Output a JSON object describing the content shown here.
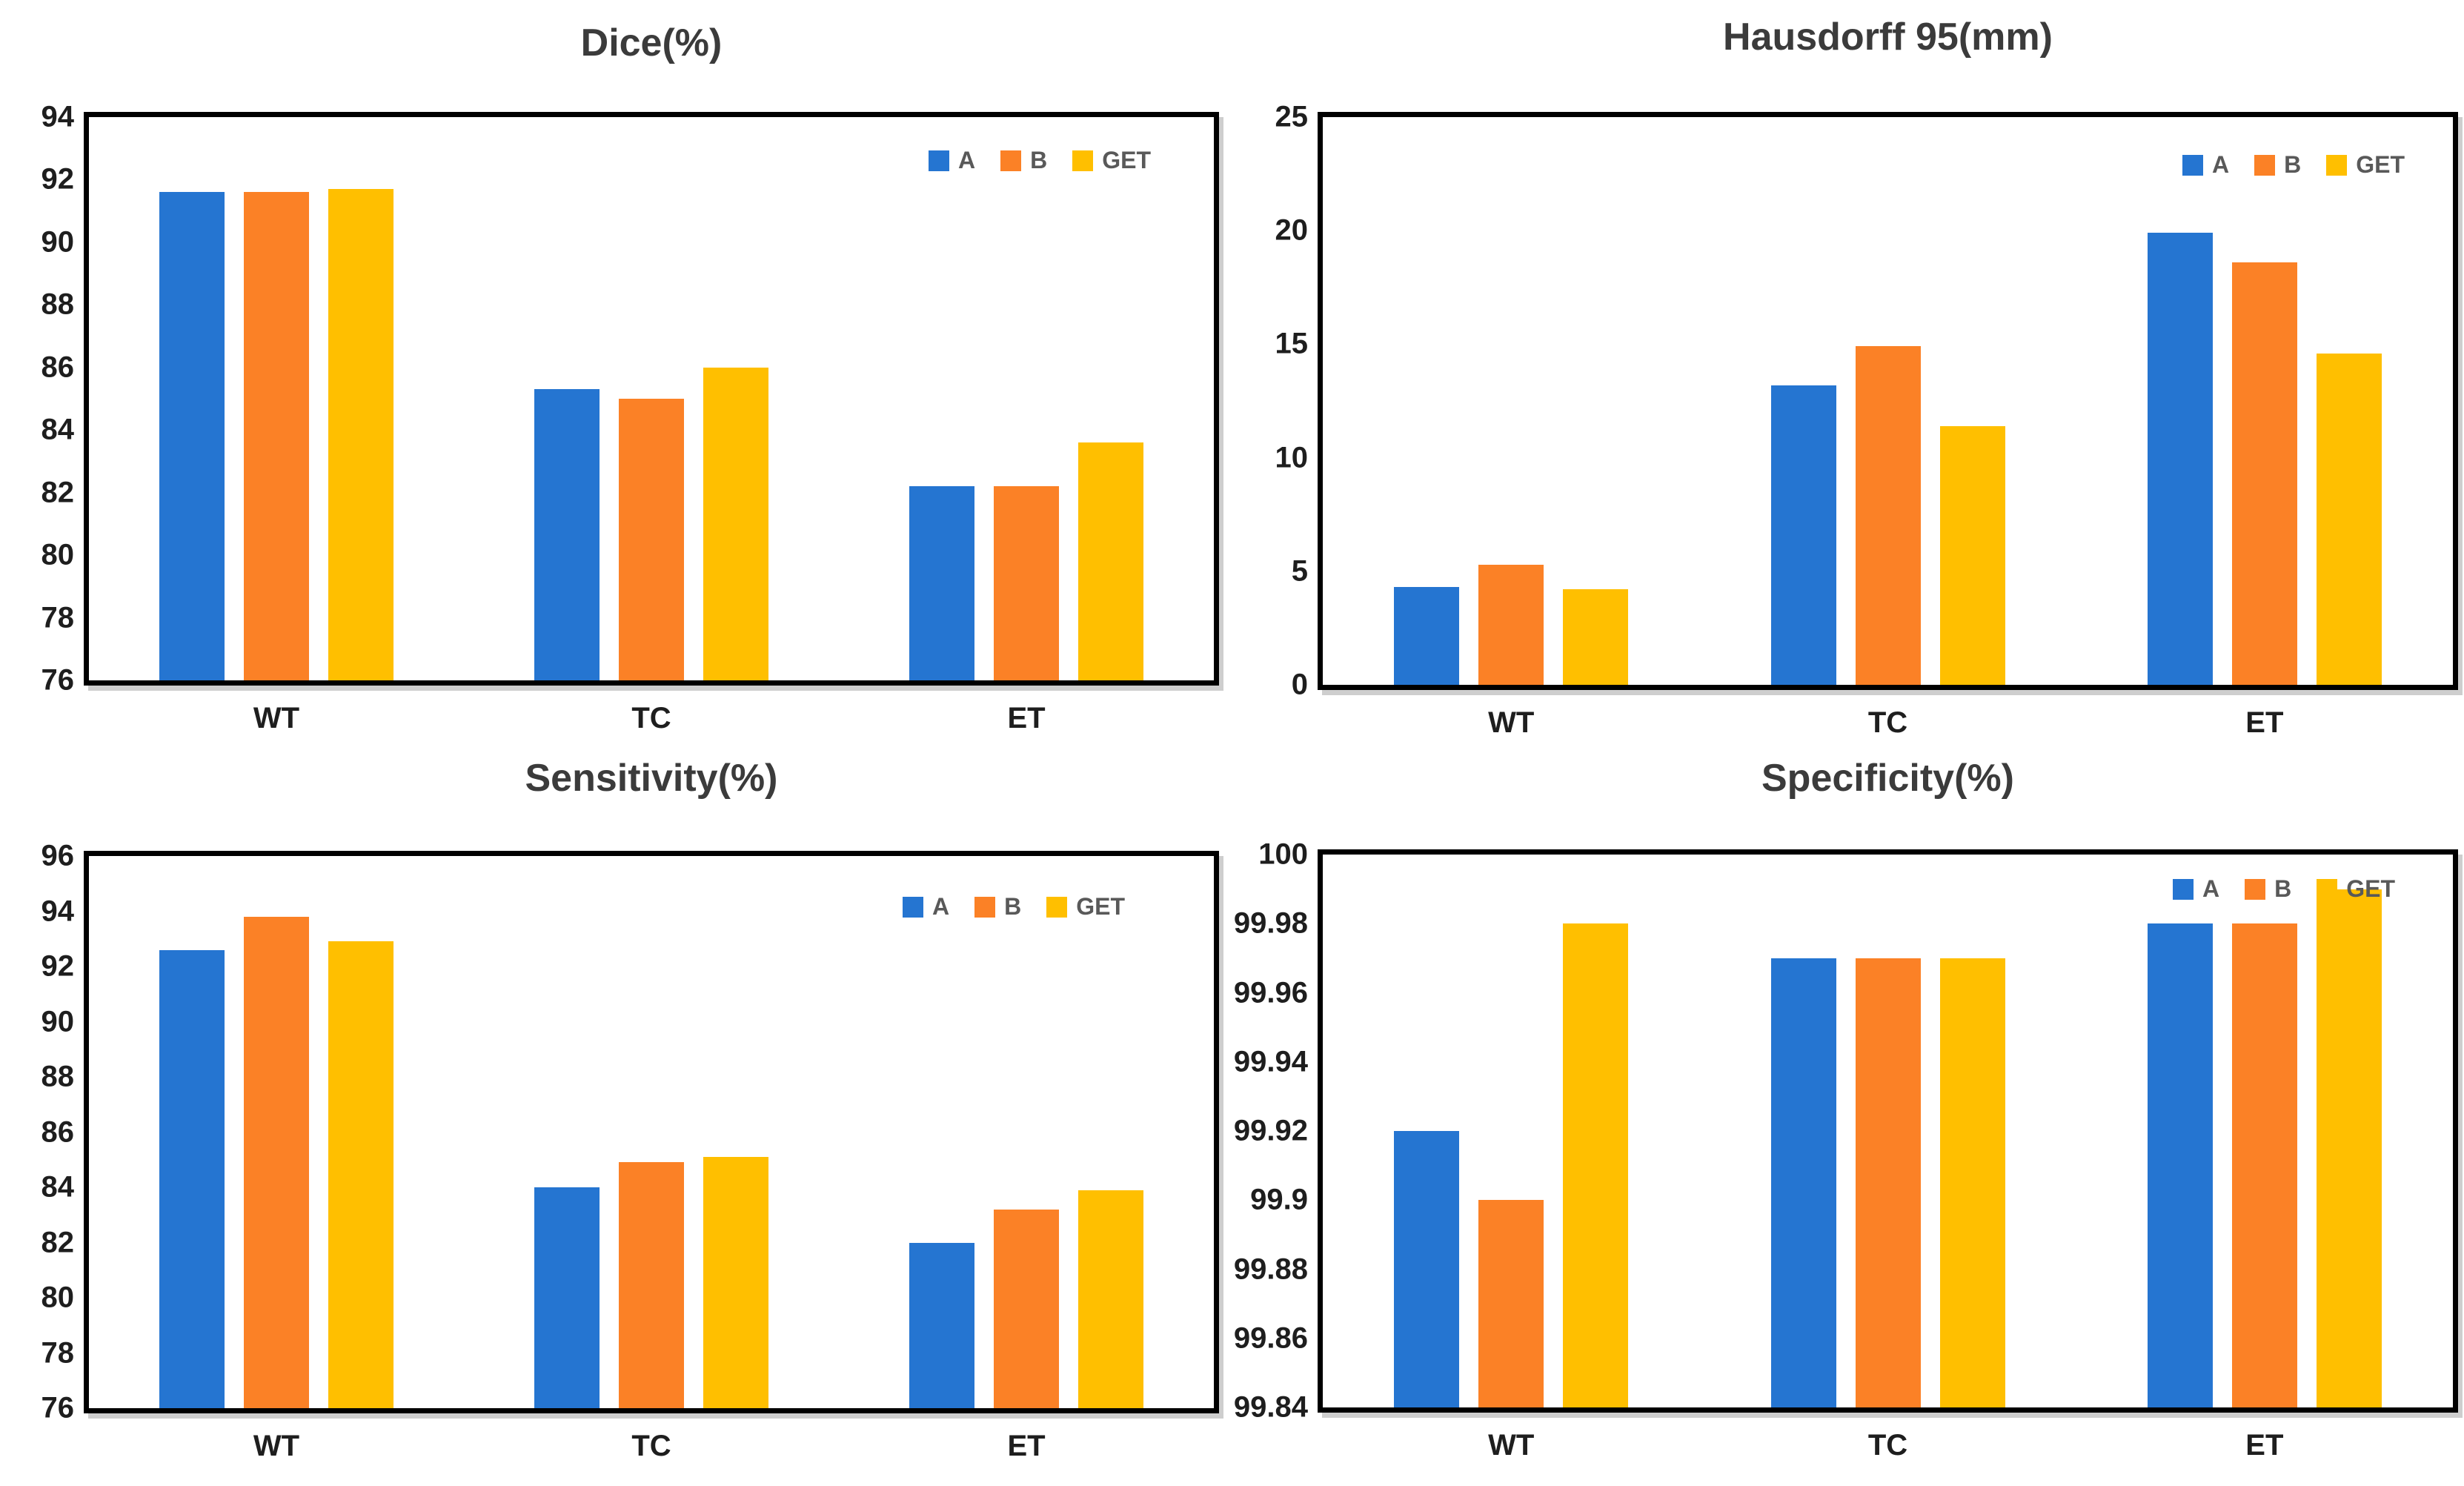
{
  "figure": {
    "background": "#ffffff",
    "title_color": "#3B3B3B",
    "axis_text_color": "#1E1E1E",
    "legend_text_color": "#595959",
    "frame_color": "#000000"
  },
  "chart_data": [
    {
      "id": "dice",
      "type": "bar",
      "title": "Dice(%)",
      "categories": [
        "WT",
        "TC",
        "ET"
      ],
      "series": [
        {
          "name": "A",
          "color": "#2575D1",
          "values": [
            91.6,
            85.3,
            82.2
          ]
        },
        {
          "name": "B",
          "color": "#FB8126",
          "values": [
            91.6,
            85.0,
            82.2
          ]
        },
        {
          "name": "GET",
          "color": "#FFBF00",
          "values": [
            91.7,
            86.0,
            83.6
          ]
        }
      ],
      "ylim": [
        76,
        94
      ],
      "ytick_values": [
        94,
        92,
        90,
        88,
        86,
        84,
        82,
        80,
        78,
        76
      ],
      "ytick_labels": [
        "94",
        "92",
        "90",
        "88",
        "86",
        "84",
        "82",
        "80",
        "78",
        "76"
      ],
      "legend_position": "top-right",
      "grid": false
    },
    {
      "id": "hausdorff",
      "type": "bar",
      "title": "Hausdorff 95(mm)",
      "categories": [
        "WT",
        "TC",
        "ET"
      ],
      "series": [
        {
          "name": "A",
          "color": "#2575D1",
          "values": [
            4.3,
            13.2,
            19.9
          ]
        },
        {
          "name": "B",
          "color": "#FB8126",
          "values": [
            5.3,
            14.9,
            18.6
          ]
        },
        {
          "name": "GET",
          "color": "#FFBF00",
          "values": [
            4.2,
            11.4,
            14.6
          ]
        }
      ],
      "ylim": [
        0,
        25
      ],
      "ytick_values": [
        25,
        20,
        15,
        10,
        5,
        0
      ],
      "ytick_labels": [
        "25",
        "20",
        "15",
        "10",
        "5",
        "0"
      ],
      "legend_position": "top-right",
      "grid": false
    },
    {
      "id": "sensitivity",
      "type": "bar",
      "title": "Sensitivity(%)",
      "categories": [
        "WT",
        "TC",
        "ET"
      ],
      "series": [
        {
          "name": "A",
          "color": "#2575D1",
          "values": [
            92.6,
            84.0,
            82.0
          ]
        },
        {
          "name": "B",
          "color": "#FB8126",
          "values": [
            93.8,
            84.9,
            83.2
          ]
        },
        {
          "name": "GET",
          "color": "#FFBF00",
          "values": [
            92.9,
            85.1,
            83.9
          ]
        }
      ],
      "ylim": [
        76,
        96
      ],
      "ytick_values": [
        96,
        94,
        92,
        90,
        88,
        86,
        84,
        82,
        80,
        78,
        76
      ],
      "ytick_labels": [
        "96",
        "94",
        "92",
        "90",
        "88",
        "86",
        "84",
        "82",
        "80",
        "78",
        "76"
      ],
      "legend_position": "top-right",
      "grid": false
    },
    {
      "id": "specificity",
      "type": "bar",
      "title": "Specificity(%)",
      "categories": [
        "WT",
        "TC",
        "ET"
      ],
      "series": [
        {
          "name": "A",
          "color": "#2575D1",
          "values": [
            99.92,
            99.97,
            99.98
          ]
        },
        {
          "name": "B",
          "color": "#FB8126",
          "values": [
            99.9,
            99.97,
            99.98
          ]
        },
        {
          "name": "GET",
          "color": "#FFBF00",
          "values": [
            99.98,
            99.97,
            99.99
          ]
        }
      ],
      "ylim": [
        99.84,
        100
      ],
      "ytick_values": [
        100,
        99.98,
        99.96,
        99.94,
        99.92,
        99.9,
        99.88,
        99.86,
        99.84
      ],
      "ytick_labels": [
        "100",
        "99.98",
        "99.96",
        "99.94",
        "99.92",
        "99.9",
        "99.88",
        "99.86",
        "99.84"
      ],
      "legend_position": "top-right",
      "grid": false
    }
  ]
}
